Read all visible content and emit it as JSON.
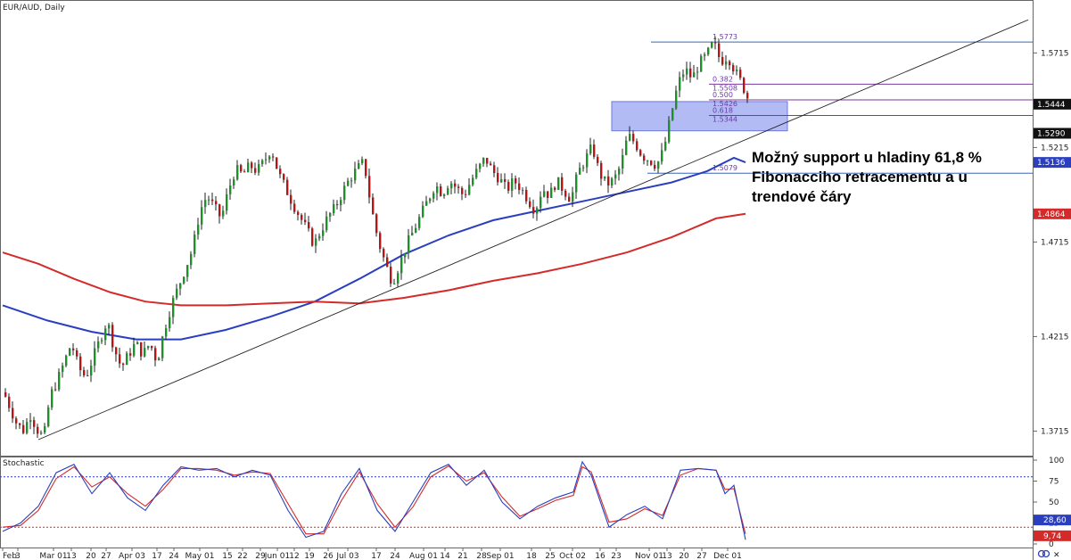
{
  "chart_data": {
    "type": "candlestick",
    "title": "EUR/AUD, Daily",
    "price_axis": {
      "ylim": [
        1.3585,
        1.5995
      ],
      "ticks": [
        "1.5715",
        "1.5215",
        "1.4715",
        "1.4215",
        "1.3715"
      ]
    },
    "x_ticks": [
      "Feb",
      "3",
      "Mar 01",
      "13",
      "20",
      "27",
      "Apr 03",
      "17",
      "24",
      "May 01",
      "15",
      "22",
      "29",
      "Jun 01",
      "12",
      "19",
      "26",
      "Jul 03",
      "17",
      "24",
      "Aug 01",
      "14",
      "21",
      "28",
      "Sep 01",
      "18",
      "25",
      "Oct 02",
      "16",
      "23",
      "Nov 01",
      "13",
      "20",
      "27",
      "Dec 01"
    ],
    "price_path": [
      [
        0,
        1.392
      ],
      [
        8,
        1.383
      ],
      [
        15,
        1.375
      ],
      [
        22,
        1.372
      ],
      [
        30,
        1.38
      ],
      [
        38,
        1.372
      ],
      [
        45,
        1.368
      ],
      [
        52,
        1.39
      ],
      [
        60,
        1.398
      ],
      [
        68,
        1.408
      ],
      [
        76,
        1.418
      ],
      [
        84,
        1.405
      ],
      [
        92,
        1.4
      ],
      [
        100,
        1.41
      ],
      [
        108,
        1.42
      ],
      [
        116,
        1.43
      ],
      [
        124,
        1.415
      ],
      [
        132,
        1.405
      ],
      [
        140,
        1.412
      ],
      [
        148,
        1.418
      ],
      [
        156,
        1.412
      ],
      [
        164,
        1.418
      ],
      [
        172,
        1.408
      ],
      [
        180,
        1.425
      ],
      [
        188,
        1.438
      ],
      [
        196,
        1.448
      ],
      [
        204,
        1.458
      ],
      [
        212,
        1.468
      ],
      [
        220,
        1.488
      ],
      [
        228,
        1.496
      ],
      [
        236,
        1.49
      ],
      [
        244,
        1.484
      ],
      [
        252,
        1.499
      ],
      [
        260,
        1.51
      ],
      [
        268,
        1.507
      ],
      [
        276,
        1.512
      ],
      [
        284,
        1.509
      ],
      [
        292,
        1.514
      ],
      [
        300,
        1.521
      ],
      [
        308,
        1.508
      ],
      [
        316,
        1.5
      ],
      [
        324,
        1.492
      ],
      [
        332,
        1.485
      ],
      [
        340,
        1.478
      ],
      [
        348,
        1.47
      ],
      [
        356,
        1.478
      ],
      [
        364,
        1.485
      ],
      [
        372,
        1.49
      ],
      [
        380,
        1.498
      ],
      [
        388,
        1.505
      ],
      [
        396,
        1.51
      ],
      [
        404,
        1.514
      ],
      [
        412,
        1.49
      ],
      [
        420,
        1.472
      ],
      [
        428,
        1.46
      ],
      [
        436,
        1.45
      ],
      [
        444,
        1.46
      ],
      [
        452,
        1.47
      ],
      [
        460,
        1.478
      ],
      [
        468,
        1.486
      ],
      [
        476,
        1.494
      ],
      [
        484,
        1.502
      ],
      [
        492,
        1.497
      ],
      [
        500,
        1.504
      ],
      [
        508,
        1.5
      ],
      [
        516,
        1.496
      ],
      [
        524,
        1.504
      ],
      [
        532,
        1.51
      ],
      [
        540,
        1.516
      ],
      [
        548,
        1.509
      ],
      [
        556,
        1.505
      ],
      [
        564,
        1.499
      ],
      [
        572,
        1.504
      ],
      [
        580,
        1.5
      ],
      [
        588,
        1.494
      ],
      [
        596,
        1.488
      ],
      [
        604,
        1.5
      ],
      [
        612,
        1.496
      ],
      [
        620,
        1.504
      ],
      [
        628,
        1.499
      ],
      [
        636,
        1.494
      ],
      [
        644,
        1.508
      ],
      [
        652,
        1.515
      ],
      [
        660,
        1.522
      ],
      [
        668,
        1.508
      ],
      [
        676,
        1.502
      ],
      [
        684,
        1.504
      ],
      [
        692,
        1.512
      ],
      [
        700,
        1.528
      ],
      [
        708,
        1.524
      ],
      [
        716,
        1.517
      ],
      [
        724,
        1.515
      ],
      [
        732,
        1.512
      ],
      [
        740,
        1.52
      ],
      [
        748,
        1.538
      ],
      [
        756,
        1.555
      ],
      [
        764,
        1.563
      ],
      [
        772,
        1.558
      ],
      [
        780,
        1.566
      ],
      [
        788,
        1.57
      ],
      [
        796,
        1.577
      ],
      [
        804,
        1.567
      ],
      [
        812,
        1.57
      ],
      [
        820,
        1.562
      ],
      [
        828,
        1.555
      ],
      [
        834,
        1.548
      ]
    ],
    "moving_averages": [
      {
        "color": "#2a3fbf",
        "points": [
          [
            0,
            1.438
          ],
          [
            50,
            1.43
          ],
          [
            100,
            1.424
          ],
          [
            150,
            1.42
          ],
          [
            200,
            1.42
          ],
          [
            250,
            1.425
          ],
          [
            300,
            1.432
          ],
          [
            350,
            1.44
          ],
          [
            400,
            1.452
          ],
          [
            450,
            1.465
          ],
          [
            500,
            1.475
          ],
          [
            550,
            1.483
          ],
          [
            600,
            1.488
          ],
          [
            650,
            1.493
          ],
          [
            700,
            1.498
          ],
          [
            750,
            1.503
          ],
          [
            790,
            1.509
          ],
          [
            820,
            1.516
          ],
          [
            833,
            1.5136
          ]
        ]
      },
      {
        "color": "#d42a2a",
        "points": [
          [
            0,
            1.466
          ],
          [
            40,
            1.46
          ],
          [
            80,
            1.452
          ],
          [
            120,
            1.445
          ],
          [
            160,
            1.44
          ],
          [
            200,
            1.438
          ],
          [
            250,
            1.438
          ],
          [
            300,
            1.439
          ],
          [
            350,
            1.44
          ],
          [
            400,
            1.439
          ],
          [
            450,
            1.442
          ],
          [
            500,
            1.446
          ],
          [
            550,
            1.451
          ],
          [
            600,
            1.455
          ],
          [
            650,
            1.46
          ],
          [
            700,
            1.466
          ],
          [
            750,
            1.474
          ],
          [
            800,
            1.484
          ],
          [
            833,
            1.4864
          ]
        ]
      }
    ],
    "trendline": {
      "from": [
        40,
        1.367
      ],
      "to": [
        1150,
        1.589
      ]
    },
    "fibonacci_levels": [
      {
        "value": 1.5773,
        "label": "1.5773"
      },
      {
        "value": 1.555,
        "label": "0.382",
        "sub": "1.5508"
      },
      {
        "value": 1.5467,
        "label": "0.500",
        "sub": "1.5426"
      },
      {
        "value": 1.5384,
        "label": "0.618",
        "sub": "1.5344"
      },
      {
        "value": 1.5079,
        "label": "1.5079"
      }
    ],
    "support_zone": {
      "from": 1.5322,
      "to": 1.542
    },
    "price_tags": [
      {
        "value": "1.5444",
        "price": 1.5444,
        "color": "#111111",
        "text_color": "#ffffff"
      },
      {
        "value": "1.5290",
        "price": 1.529,
        "color": "#111111",
        "text_color": "#ffffff"
      },
      {
        "value": "1.5136",
        "price": 1.5136,
        "color": "#2a3fbf",
        "text_color": "#ffffff"
      },
      {
        "value": "1.4864",
        "price": 1.4864,
        "color": "#d42a2a",
        "text_color": "#ffffff"
      }
    ],
    "annotation": [
      "Možný support u hladiny 61,8 %",
      "Fibonacciho retracementu a u",
      "trendové čáry"
    ],
    "stochastic": {
      "title": "Stochastic",
      "ticks": [
        "100",
        "75",
        "50",
        "25",
        "0"
      ],
      "levels": [
        80,
        20
      ],
      "k_path": [
        [
          0,
          15
        ],
        [
          20,
          25
        ],
        [
          40,
          45
        ],
        [
          60,
          85
        ],
        [
          80,
          95
        ],
        [
          100,
          60
        ],
        [
          120,
          85
        ],
        [
          140,
          55
        ],
        [
          160,
          40
        ],
        [
          180,
          70
        ],
        [
          200,
          92
        ],
        [
          220,
          88
        ],
        [
          240,
          90
        ],
        [
          260,
          80
        ],
        [
          280,
          88
        ],
        [
          300,
          82
        ],
        [
          320,
          40
        ],
        [
          340,
          8
        ],
        [
          360,
          15
        ],
        [
          380,
          60
        ],
        [
          400,
          90
        ],
        [
          420,
          40
        ],
        [
          440,
          15
        ],
        [
          460,
          50
        ],
        [
          480,
          85
        ],
        [
          500,
          95
        ],
        [
          520,
          70
        ],
        [
          540,
          88
        ],
        [
          560,
          50
        ],
        [
          580,
          30
        ],
        [
          600,
          45
        ],
        [
          620,
          55
        ],
        [
          640,
          62
        ],
        [
          650,
          98
        ],
        [
          660,
          82
        ],
        [
          680,
          20
        ],
        [
          700,
          35
        ],
        [
          720,
          45
        ],
        [
          740,
          30
        ],
        [
          760,
          88
        ],
        [
          780,
          90
        ],
        [
          800,
          88
        ],
        [
          810,
          60
        ],
        [
          820,
          70
        ],
        [
          833,
          5
        ]
      ],
      "d_path": [
        [
          0,
          20
        ],
        [
          20,
          22
        ],
        [
          40,
          40
        ],
        [
          60,
          78
        ],
        [
          80,
          92
        ],
        [
          100,
          68
        ],
        [
          120,
          80
        ],
        [
          140,
          60
        ],
        [
          160,
          45
        ],
        [
          180,
          65
        ],
        [
          200,
          90
        ],
        [
          220,
          90
        ],
        [
          240,
          88
        ],
        [
          260,
          82
        ],
        [
          280,
          86
        ],
        [
          300,
          84
        ],
        [
          320,
          48
        ],
        [
          340,
          12
        ],
        [
          360,
          12
        ],
        [
          380,
          52
        ],
        [
          400,
          86
        ],
        [
          420,
          48
        ],
        [
          440,
          20
        ],
        [
          460,
          44
        ],
        [
          480,
          80
        ],
        [
          500,
          93
        ],
        [
          520,
          75
        ],
        [
          540,
          85
        ],
        [
          560,
          56
        ],
        [
          580,
          33
        ],
        [
          600,
          42
        ],
        [
          620,
          52
        ],
        [
          640,
          58
        ],
        [
          650,
          92
        ],
        [
          660,
          86
        ],
        [
          680,
          26
        ],
        [
          700,
          30
        ],
        [
          720,
          42
        ],
        [
          740,
          34
        ],
        [
          760,
          82
        ],
        [
          780,
          90
        ],
        [
          800,
          88
        ],
        [
          810,
          65
        ],
        [
          820,
          66
        ],
        [
          833,
          12
        ]
      ],
      "values": [
        {
          "value": "28,60",
          "level": 28.6,
          "color": "#2a3fbf"
        },
        {
          "value": "9,74",
          "level": 9.74,
          "color": "#d42a2a"
        }
      ]
    }
  }
}
